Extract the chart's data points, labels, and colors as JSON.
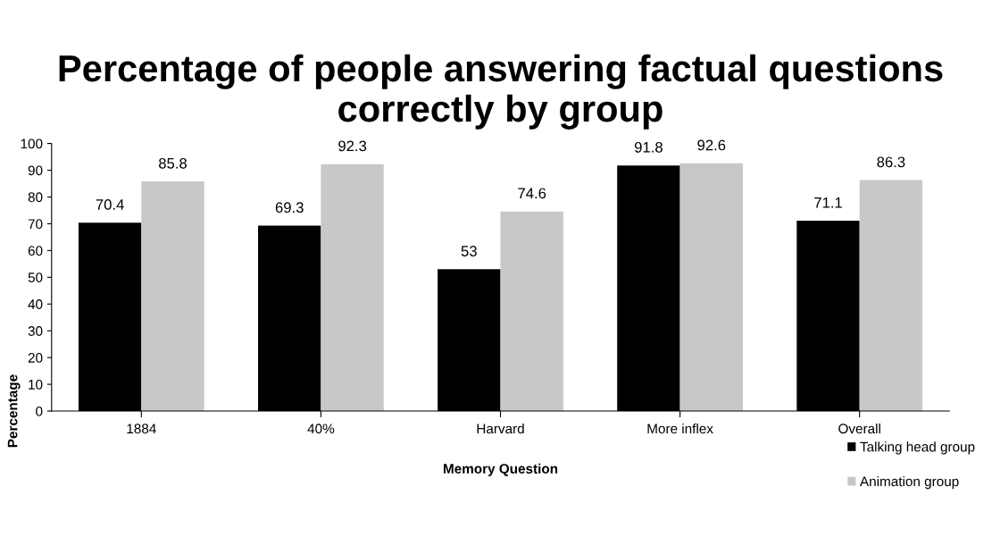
{
  "chart_data": {
    "type": "bar",
    "title": "Percentage of people answering factual questions correctly by group",
    "xlabel": "Memory Question",
    "ylabel": "Percentage",
    "categories": [
      "1884",
      "40%",
      "Harvard",
      "More inflex",
      "Overall"
    ],
    "series": [
      {
        "name": "Talking head group",
        "color": "#000000",
        "values": [
          70.4,
          69.3,
          53,
          91.8,
          71.1
        ]
      },
      {
        "name": "Animation group",
        "color": "#c8c8c8",
        "values": [
          85.8,
          92.3,
          74.6,
          92.6,
          86.3
        ]
      }
    ],
    "ylim": [
      0,
      100
    ],
    "yticks": [
      0,
      10,
      20,
      30,
      40,
      50,
      60,
      70,
      80,
      90,
      100
    ],
    "grid": false,
    "legend": "bottom right",
    "data_labels": true
  }
}
